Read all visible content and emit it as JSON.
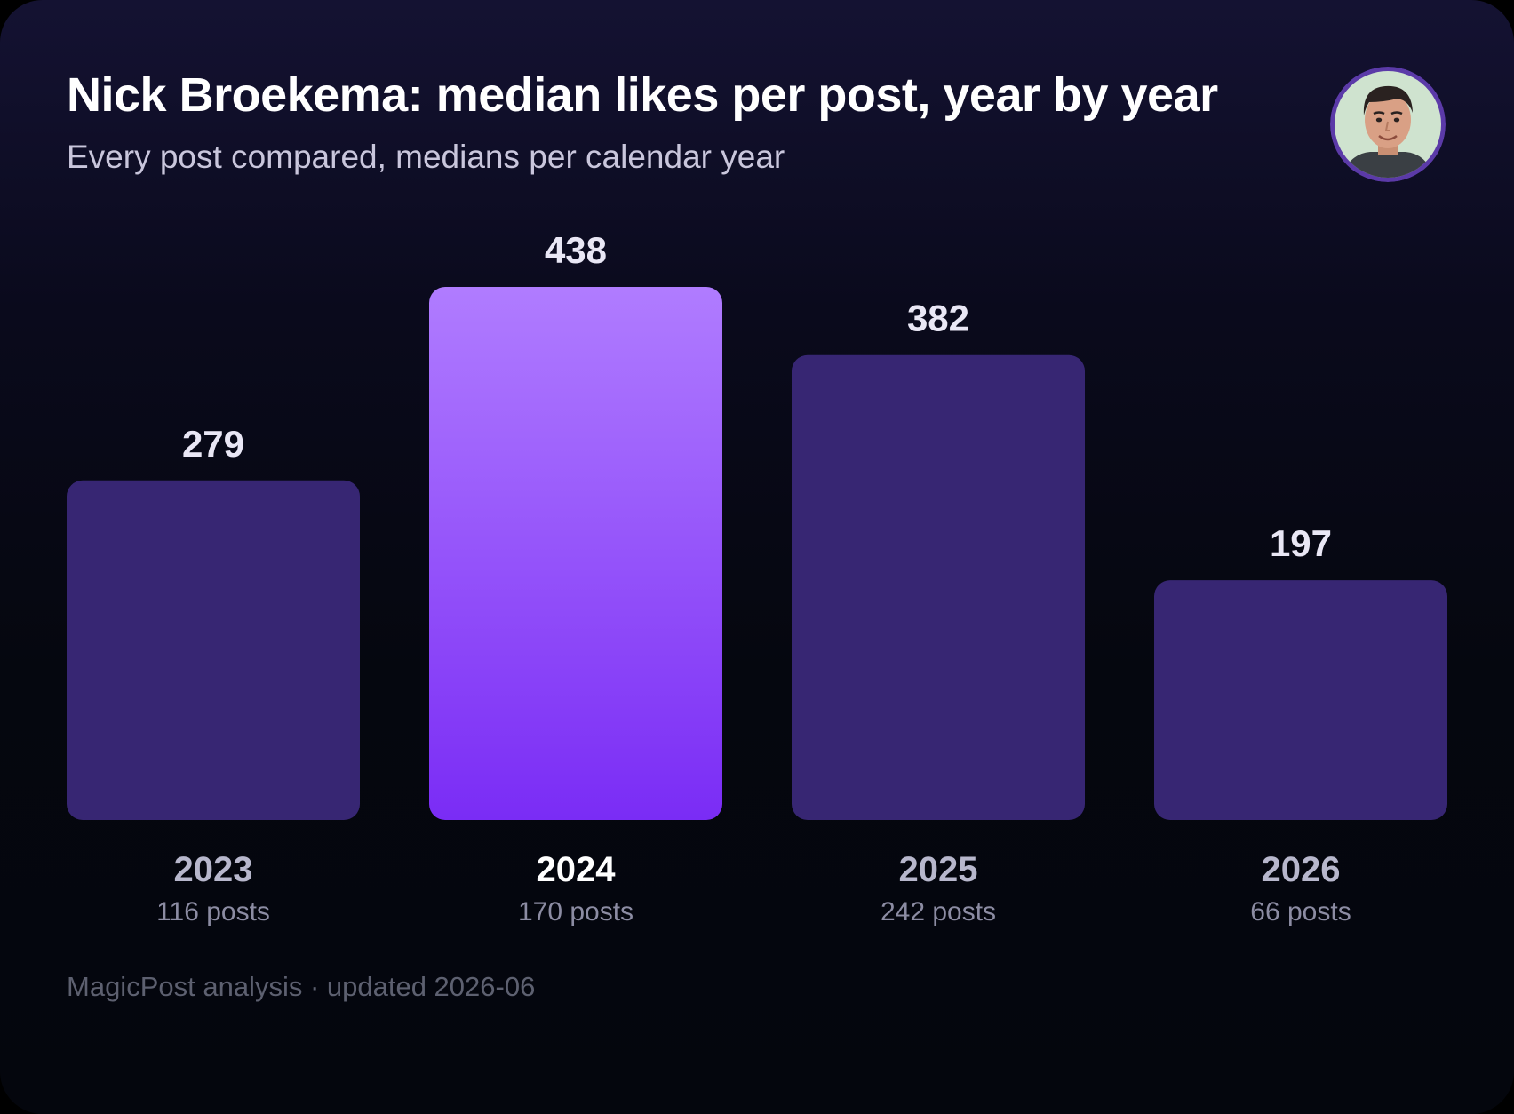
{
  "header": {
    "title": "Nick Broekema: median likes per post, year by year",
    "subtitle": "Every post compared, medians per calendar year"
  },
  "footer": {
    "text": "MagicPost analysis · updated 2026-06"
  },
  "avatar": {
    "icon": "person-portrait-icon",
    "ring_color": "#5b3aa8"
  },
  "colors": {
    "bar": "#372673",
    "highlight_top": "#b07cff",
    "highlight_bottom": "#7a2cf5"
  },
  "chart_data": {
    "type": "bar",
    "title": "Nick Broekema: median likes per post, year by year",
    "subtitle": "Every post compared, medians per calendar year",
    "categories": [
      "2023",
      "2024",
      "2025",
      "2026"
    ],
    "values": [
      279,
      438,
      382,
      197
    ],
    "posts_labels": [
      "116 posts",
      "170 posts",
      "242 posts",
      "66 posts"
    ],
    "value_labels": [
      "279",
      "438",
      "382",
      "197"
    ],
    "highlight": "2024",
    "ylim": [
      0,
      438
    ],
    "grid": false,
    "legend": "none"
  }
}
